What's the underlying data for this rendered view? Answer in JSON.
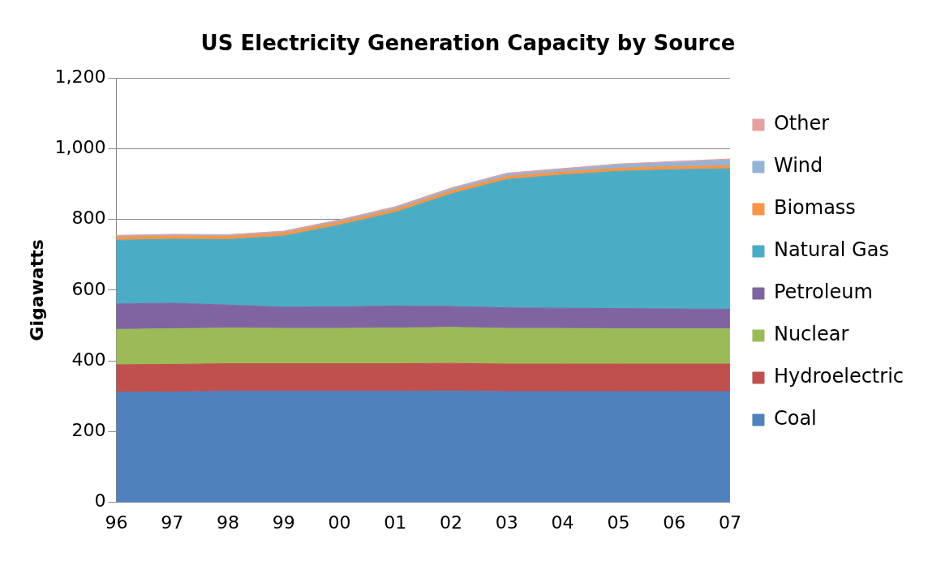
{
  "chart_data": {
    "type": "area",
    "stacked": true,
    "title": "US Electricity Generation Capacity by Source",
    "ylabel": "Gigawatts",
    "categories": [
      "96",
      "97",
      "98",
      "99",
      "00",
      "01",
      "02",
      "03",
      "04",
      "05",
      "06",
      "07"
    ],
    "series": [
      {
        "name": "Coal",
        "color": "#4f81bd",
        "values": [
          311,
          312,
          314,
          314,
          314,
          314,
          315,
          313,
          313,
          313,
          313,
          313
        ]
      },
      {
        "name": "Hydroelectric",
        "color": "#c0504d",
        "values": [
          78,
          78,
          78,
          78,
          78,
          78,
          78,
          78,
          78,
          78,
          78,
          78
        ]
      },
      {
        "name": "Nuclear",
        "color": "#9bbb59",
        "values": [
          100,
          101,
          101,
          100,
          100,
          101,
          102,
          101,
          101,
          100,
          100,
          100
        ]
      },
      {
        "name": "Petroleum",
        "color": "#8064a2",
        "values": [
          72,
          72,
          65,
          60,
          61,
          62,
          59,
          58,
          57,
          57,
          56,
          55
        ]
      },
      {
        "name": "Natural Gas",
        "color": "#4bacc6",
        "values": [
          180,
          181,
          185,
          201,
          231,
          265,
          318,
          363,
          377,
          388,
          394,
          397
        ]
      },
      {
        "name": "Biomass",
        "color": "#f79646",
        "values": [
          9,
          9,
          9,
          9,
          9,
          9,
          9,
          9,
          9,
          9,
          9,
          9
        ]
      },
      {
        "name": "Wind",
        "color": "#95b3d7",
        "values": [
          2,
          2,
          2,
          2,
          3,
          4,
          5,
          6,
          6,
          9,
          11,
          16
        ]
      },
      {
        "name": "Other",
        "color": "#e6a0a0",
        "values": [
          3,
          3,
          3,
          3,
          3,
          3,
          3,
          3,
          3,
          3,
          3,
          3
        ]
      }
    ],
    "ylim": [
      0,
      1200
    ],
    "yticks": [
      0,
      200,
      400,
      600,
      800,
      {
        "value": 1000,
        "label": "1,000"
      },
      {
        "value": 1200,
        "label": "1,200"
      }
    ],
    "grid": "y",
    "legend": "right"
  }
}
